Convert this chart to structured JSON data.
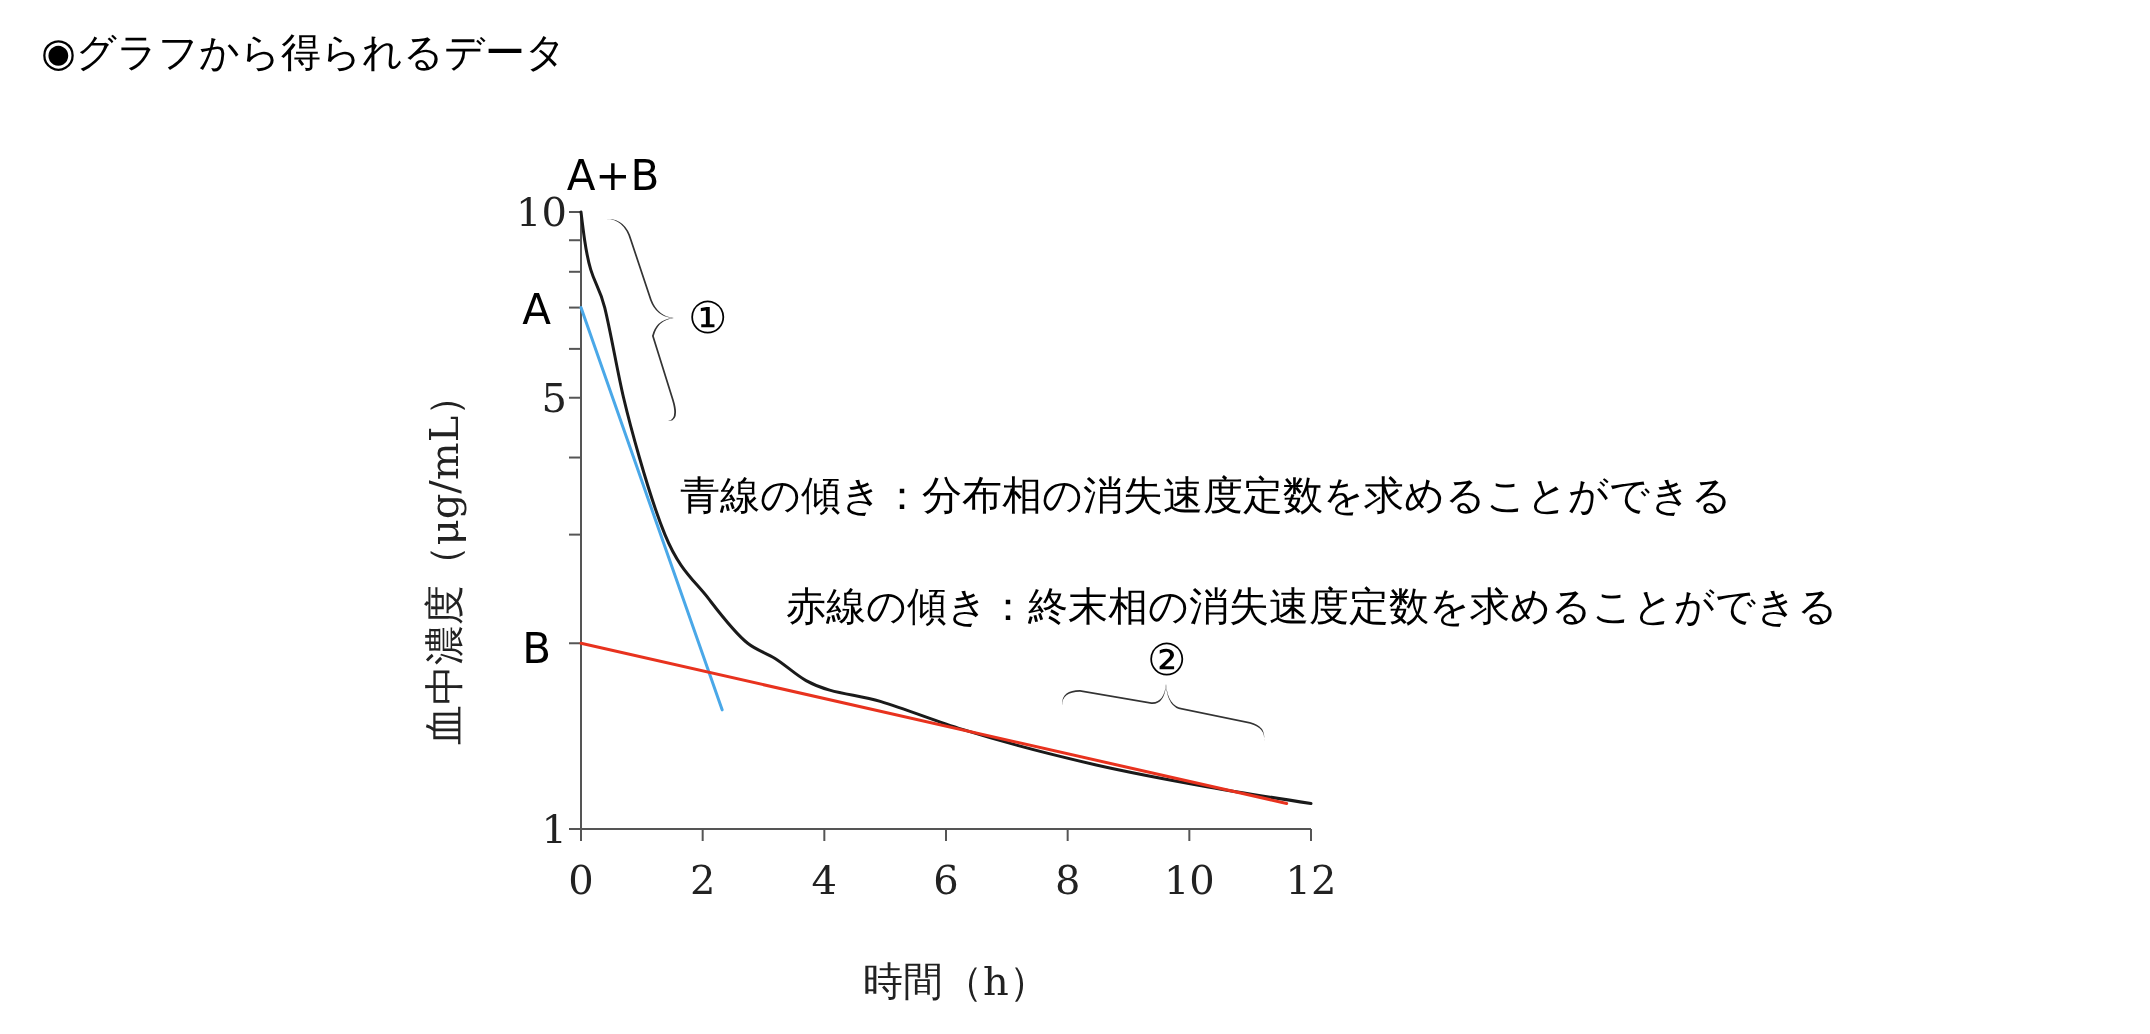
{
  "chart_data": {
    "type": "line",
    "title": "◉グラフから得られるデータ",
    "xlabel": "時間（h）",
    "ylabel": "血中濃度（μg/mL）",
    "log": "y",
    "xlim": [
      0,
      12
    ],
    "xticks": [
      0,
      2,
      4,
      6,
      8,
      10,
      12
    ],
    "ylim": [
      1,
      10
    ],
    "yticks": [
      1,
      {
        "value": 2,
        "label": null
      },
      {
        "value": 3,
        "label": null
      },
      {
        "value": 4,
        "label": null
      },
      5,
      {
        "value": 6,
        "label": null
      },
      {
        "value": 7,
        "label": null
      },
      {
        "value": 8,
        "label": null
      },
      {
        "value": 9,
        "label": null
      },
      10
    ],
    "grid": false,
    "marker": "none",
    "line_style": "solid",
    "series": [
      {
        "color": "#1a1a1a",
        "x": [
          0,
          0.06,
          0.39,
          0.7,
          0.96,
          1.38,
          2.1,
          2.74,
          3.19,
          3.7,
          4.92,
          6.27,
          8.47,
          10.31,
          12
        ],
        "values": [
          10,
          9,
          7,
          5,
          4,
          3,
          2.36,
          2,
          1.89,
          1.74,
          1.61,
          1.45,
          1.27,
          1.17,
          1.1
        ]
      },
      {
        "color": "#4aa8e8",
        "x": [
          0,
          2.32
        ],
        "values": [
          7,
          1.56
        ]
      },
      {
        "color": "#e8321e",
        "x": [
          0,
          11.6
        ],
        "values": [
          2,
          1.1
        ]
      }
    ],
    "annotations": [
      "A+B",
      "A",
      "B",
      "①",
      "②",
      "青線の傾き：分布相の消失速度定数を求めることができる",
      "赤線の傾き：終末相の消失速度定数を求めることができる"
    ]
  }
}
